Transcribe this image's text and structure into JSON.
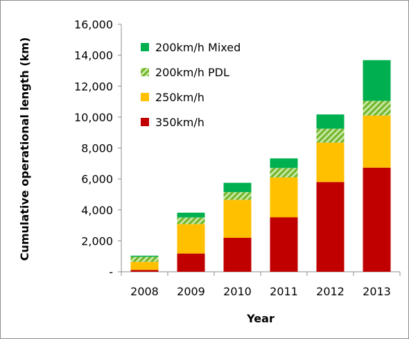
{
  "chart_data": {
    "type": "bar",
    "stacked": true,
    "xlabel": "Year",
    "ylabel": "Cumulative operational  length (km)",
    "ylim": [
      0,
      16000
    ],
    "yticks": [
      0,
      2000,
      4000,
      6000,
      8000,
      10000,
      12000,
      14000,
      16000
    ],
    "ytick_labels": [
      "-",
      "2,000",
      "4,000",
      "6,000",
      "8,000",
      "10,000",
      "12,000",
      "14,000",
      "16,000"
    ],
    "categories": [
      "2008",
      "2009",
      "2010",
      "2011",
      "2012",
      "2013"
    ],
    "series": [
      {
        "name": "350km/h",
        "color": "#c00000",
        "pattern": "solid",
        "values": [
          120,
          1180,
          2200,
          3520,
          5800,
          6730
        ]
      },
      {
        "name": "250km/h",
        "color": "#ffc000",
        "pattern": "solid",
        "values": [
          520,
          1900,
          2450,
          2580,
          2550,
          3370
        ]
      },
      {
        "name": "200km/h PDL",
        "color": "#92d050",
        "pattern": "hatched",
        "values": [
          330,
          430,
          500,
          610,
          900,
          950
        ]
      },
      {
        "name": "200km/h Mixed",
        "color": "#00b050",
        "pattern": "solid",
        "values": [
          70,
          310,
          600,
          620,
          920,
          2630
        ]
      }
    ],
    "legend_position": "top-left",
    "legend_order": [
      "200km/h Mixed",
      "200km/h PDL",
      "250km/h",
      "350km/h"
    ],
    "grid": false
  }
}
